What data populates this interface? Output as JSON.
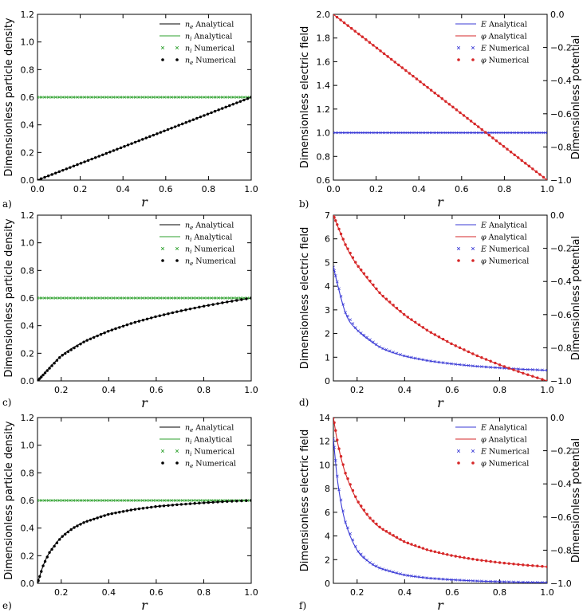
{
  "figure_title": "",
  "chart_data": [
    {
      "panel_label": "a)",
      "type": "line",
      "xlabel": "r",
      "ylabel": "Dimensionless particle  density",
      "xlim": [
        0.0,
        1.0
      ],
      "ylim": [
        0.0,
        1.2
      ],
      "xticks": [
        "0.0",
        "0.2",
        "0.4",
        "0.6",
        "0.8",
        "1.0"
      ],
      "yticks": [
        "0.0",
        "0.2",
        "0.4",
        "0.6",
        "0.8",
        "1.0",
        "1.2"
      ],
      "legend": [
        "n_e Analytical",
        "n_i Analytical",
        "n_i Numerical",
        "n_e Numerical"
      ],
      "legend_location": "top-right",
      "series": [
        {
          "name": "n_e Analytical",
          "color": "#000000",
          "style": "line",
          "x": [
            0.0,
            1.0
          ],
          "y": [
            0.0,
            0.6
          ]
        },
        {
          "name": "n_i Analytical",
          "color": "#2ca02c",
          "style": "line",
          "x": [
            0.0,
            1.0
          ],
          "y": [
            0.6,
            0.6
          ]
        },
        {
          "name": "n_i Numerical",
          "color": "#2ca02c",
          "style": "x",
          "x": [
            0.0,
            1.0
          ],
          "y": [
            0.6,
            0.6
          ]
        },
        {
          "name": "n_e Numerical",
          "color": "#000000",
          "style": "dot",
          "x": [
            0.0,
            1.0
          ],
          "y": [
            0.0,
            0.6
          ]
        }
      ]
    },
    {
      "panel_label": "b)",
      "type": "line",
      "xlabel": "r",
      "ylabel": "Dimensionless electric field",
      "y2label": "Dimensionless potential",
      "xlim": [
        0.0,
        1.0
      ],
      "ylim": [
        0.6,
        2.0
      ],
      "y2lim": [
        -1.0,
        0.0
      ],
      "xticks": [
        "0.0",
        "0.2",
        "0.4",
        "0.6",
        "0.8",
        "1.0"
      ],
      "yticks": [
        "0.6",
        "0.8",
        "1.0",
        "1.2",
        "1.4",
        "1.6",
        "1.8",
        "2.0"
      ],
      "y2ticks": [
        "-1.0",
        "-0.8",
        "-0.6",
        "-0.4",
        "-0.2",
        "0.0"
      ],
      "legend": [
        "E Analytical",
        "φ Analytical",
        "E Numerical",
        "φ Numerical"
      ],
      "legend_location": "top-right",
      "series": [
        {
          "name": "E Analytical",
          "color": "#3a3ad6",
          "style": "line",
          "axis": "left",
          "x": [
            0.0,
            1.0
          ],
          "y": [
            1.0,
            1.0
          ]
        },
        {
          "name": "φ Analytical",
          "color": "#d62728",
          "style": "line",
          "axis": "right",
          "x": [
            0.0,
            1.0
          ],
          "y": [
            0.0,
            -1.0
          ]
        },
        {
          "name": "E Numerical",
          "color": "#3a3ad6",
          "style": "x",
          "axis": "left",
          "x": [
            0.0,
            1.0
          ],
          "y": [
            1.0,
            1.0
          ]
        },
        {
          "name": "φ Numerical",
          "color": "#d62728",
          "style": "dot",
          "axis": "right",
          "x": [
            0.0,
            1.0
          ],
          "y": [
            0.0,
            -1.0
          ]
        }
      ]
    },
    {
      "panel_label": "c)",
      "type": "line",
      "xlabel": "r",
      "ylabel": "Dimensionless particle  density",
      "xlim": [
        0.1,
        1.0
      ],
      "ylim": [
        0.0,
        1.2
      ],
      "xticks": [
        "0.2",
        "0.4",
        "0.6",
        "0.8",
        "1.0"
      ],
      "yticks": [
        "0.0",
        "0.2",
        "0.4",
        "0.6",
        "0.8",
        "1.0",
        "1.2"
      ],
      "legend": [
        "n_e Analytical",
        "n_i Analytical",
        "n_i Numerical",
        "n_e Numerical"
      ],
      "legend_location": "top-right",
      "series": [
        {
          "name": "n_e Analytical",
          "color": "#000000",
          "style": "line",
          "x": [
            0.1,
            0.2,
            0.3,
            0.4,
            0.5,
            0.6,
            0.7,
            0.8,
            0.9,
            1.0
          ],
          "y": [
            0.0,
            0.181,
            0.287,
            0.361,
            0.419,
            0.466,
            0.506,
            0.541,
            0.572,
            0.6
          ]
        },
        {
          "name": "n_i Analytical",
          "color": "#2ca02c",
          "style": "line",
          "x": [
            0.1,
            1.0
          ],
          "y": [
            0.6,
            0.6
          ]
        },
        {
          "name": "n_i Numerical",
          "color": "#2ca02c",
          "style": "x",
          "x": [
            0.1,
            1.0
          ],
          "y": [
            0.6,
            0.6
          ]
        },
        {
          "name": "n_e Numerical",
          "color": "#000000",
          "style": "dot",
          "x": [
            0.1,
            0.2,
            0.3,
            0.4,
            0.5,
            0.6,
            0.7,
            0.8,
            0.9,
            1.0
          ],
          "y": [
            0.0,
            0.181,
            0.287,
            0.361,
            0.419,
            0.466,
            0.506,
            0.541,
            0.572,
            0.6
          ]
        }
      ]
    },
    {
      "panel_label": "d)",
      "type": "line",
      "xlabel": "r",
      "ylabel": "Dimensionless electric field",
      "y2label": "Dimensionless potential",
      "xlim": [
        0.1,
        1.0
      ],
      "ylim": [
        0,
        7
      ],
      "y2lim": [
        -1.0,
        0.0
      ],
      "xticks": [
        "0.2",
        "0.4",
        "0.6",
        "0.8",
        "1.0"
      ],
      "yticks": [
        "0",
        "1",
        "2",
        "3",
        "4",
        "5",
        "6",
        "7"
      ],
      "y2ticks": [
        "-1.0",
        "-0.8",
        "-0.6",
        "-0.4",
        "-0.2",
        "0.0"
      ],
      "legend": [
        "E Analytical",
        "φ Analytical",
        "E Numerical",
        "φ Numerical"
      ],
      "legend_location": "top-right",
      "series": [
        {
          "name": "E Analytical",
          "color": "#3a3ad6",
          "style": "line",
          "axis": "left",
          "x": [
            0.1,
            0.15,
            0.2,
            0.3,
            0.4,
            0.5,
            0.6,
            0.7,
            0.8,
            0.9,
            1.0
          ],
          "y": [
            4.8,
            2.9,
            2.15,
            1.4,
            1.05,
            0.85,
            0.72,
            0.62,
            0.55,
            0.49,
            0.45
          ]
        },
        {
          "name": "φ Analytical",
          "color": "#d62728",
          "style": "line",
          "axis": "right",
          "x": [
            0.1,
            0.15,
            0.2,
            0.3,
            0.4,
            0.5,
            0.6,
            0.7,
            0.8,
            0.9,
            1.0
          ],
          "y": [
            0.0,
            -0.176,
            -0.301,
            -0.477,
            -0.602,
            -0.699,
            -0.778,
            -0.845,
            -0.903,
            -0.954,
            -1.0
          ]
        },
        {
          "name": "E Numerical",
          "color": "#3a3ad6",
          "style": "x",
          "axis": "left",
          "x": [
            0.1,
            0.15,
            0.2,
            0.3,
            0.4,
            0.5,
            0.6,
            0.7,
            0.8,
            0.9,
            1.0
          ],
          "y": [
            4.8,
            2.9,
            2.15,
            1.4,
            1.05,
            0.85,
            0.72,
            0.62,
            0.55,
            0.49,
            0.45
          ]
        },
        {
          "name": "φ Numerical",
          "color": "#d62728",
          "style": "dot",
          "axis": "right",
          "x": [
            0.1,
            0.15,
            0.2,
            0.3,
            0.4,
            0.5,
            0.6,
            0.7,
            0.8,
            0.9,
            1.0
          ],
          "y": [
            0.0,
            -0.176,
            -0.301,
            -0.477,
            -0.602,
            -0.699,
            -0.778,
            -0.845,
            -0.903,
            -0.954,
            -1.0
          ]
        }
      ]
    },
    {
      "panel_label": "e)",
      "type": "line",
      "xlabel": "r",
      "ylabel": "Dimensionless particle  density",
      "xlim": [
        0.1,
        1.0
      ],
      "ylim": [
        0.0,
        1.2
      ],
      "xticks": [
        "0.2",
        "0.4",
        "0.6",
        "0.8",
        "1.0"
      ],
      "yticks": [
        "0.0",
        "0.2",
        "0.4",
        "0.6",
        "0.8",
        "1.0",
        "1.2"
      ],
      "legend": [
        "n_e Analytical",
        "n_i Analytical",
        "n_i Numerical",
        "n_e Numerical"
      ],
      "legend_location": "top-right",
      "series": [
        {
          "name": "n_e Analytical",
          "color": "#000000",
          "style": "line",
          "x": [
            0.1,
            0.125,
            0.15,
            0.2,
            0.25,
            0.3,
            0.4,
            0.5,
            0.6,
            0.7,
            0.8,
            0.9,
            1.0
          ],
          "y": [
            0.0,
            0.133,
            0.222,
            0.333,
            0.4,
            0.444,
            0.5,
            0.533,
            0.556,
            0.571,
            0.583,
            0.593,
            0.6
          ]
        },
        {
          "name": "n_i Analytical",
          "color": "#2ca02c",
          "style": "line",
          "x": [
            0.1,
            1.0
          ],
          "y": [
            0.6,
            0.6
          ]
        },
        {
          "name": "n_i Numerical",
          "color": "#2ca02c",
          "style": "x",
          "x": [
            0.1,
            1.0
          ],
          "y": [
            0.6,
            0.6
          ]
        },
        {
          "name": "n_e Numerical",
          "color": "#000000",
          "style": "dot",
          "x": [
            0.1,
            0.125,
            0.15,
            0.2,
            0.25,
            0.3,
            0.4,
            0.5,
            0.6,
            0.7,
            0.8,
            0.9,
            1.0
          ],
          "y": [
            0.0,
            0.133,
            0.222,
            0.333,
            0.4,
            0.444,
            0.5,
            0.533,
            0.556,
            0.571,
            0.583,
            0.593,
            0.6
          ]
        }
      ]
    },
    {
      "panel_label": "f)",
      "type": "line",
      "xlabel": "r",
      "ylabel": "Dimensionless electric field",
      "y2label": "Dimensionless potential",
      "xlim": [
        0.1,
        1.0
      ],
      "ylim": [
        0,
        14
      ],
      "y2lim": [
        -1.0,
        0.0
      ],
      "xticks": [
        "0.2",
        "0.4",
        "0.6",
        "0.8",
        "1.0"
      ],
      "yticks": [
        "0",
        "2",
        "4",
        "6",
        "8",
        "10",
        "12",
        "14"
      ],
      "y2ticks": [
        "-1.0",
        "-0.8",
        "-0.6",
        "-0.4",
        "-0.2",
        "0.0"
      ],
      "legend": [
        "E Analytical",
        "φ Analytical",
        "E Numerical",
        "φ Numerical"
      ],
      "legend_location": "top-right",
      "series": [
        {
          "name": "E Analytical",
          "color": "#3a3ad6",
          "style": "line",
          "axis": "left",
          "x": [
            0.1,
            0.12,
            0.15,
            0.2,
            0.25,
            0.3,
            0.4,
            0.5,
            0.6,
            0.7,
            0.8,
            0.9,
            1.0
          ],
          "y": [
            12.2,
            8.3,
            5.2,
            2.8,
            1.8,
            1.25,
            0.7,
            0.44,
            0.3,
            0.2,
            0.14,
            0.09,
            0.06
          ]
        },
        {
          "name": "φ Analytical",
          "color": "#d62728",
          "style": "line",
          "axis": "right",
          "x": [
            0.1,
            0.12,
            0.15,
            0.2,
            0.25,
            0.3,
            0.4,
            0.5,
            0.6,
            0.7,
            0.8,
            0.9,
            1.0
          ],
          "y": [
            0.0,
            -0.167,
            -0.333,
            -0.5,
            -0.6,
            -0.667,
            -0.75,
            -0.8,
            -0.833,
            -0.857,
            -0.875,
            -0.889,
            -0.9
          ]
        },
        {
          "name": "E Numerical",
          "color": "#3a3ad6",
          "style": "x",
          "axis": "left",
          "x": [
            0.1,
            0.12,
            0.15,
            0.2,
            0.25,
            0.3,
            0.4,
            0.5,
            0.6,
            0.7,
            0.8,
            0.9,
            1.0
          ],
          "y": [
            12.2,
            8.3,
            5.2,
            2.8,
            1.8,
            1.25,
            0.7,
            0.44,
            0.3,
            0.2,
            0.14,
            0.09,
            0.06
          ]
        },
        {
          "name": "φ Numerical",
          "color": "#d62728",
          "style": "dot",
          "axis": "right",
          "x": [
            0.1,
            0.12,
            0.15,
            0.2,
            0.25,
            0.3,
            0.4,
            0.5,
            0.6,
            0.7,
            0.8,
            0.9,
            1.0
          ],
          "y": [
            0.0,
            -0.167,
            -0.333,
            -0.5,
            -0.6,
            -0.667,
            -0.75,
            -0.8,
            -0.833,
            -0.857,
            -0.875,
            -0.889,
            -0.9
          ]
        }
      ]
    }
  ]
}
